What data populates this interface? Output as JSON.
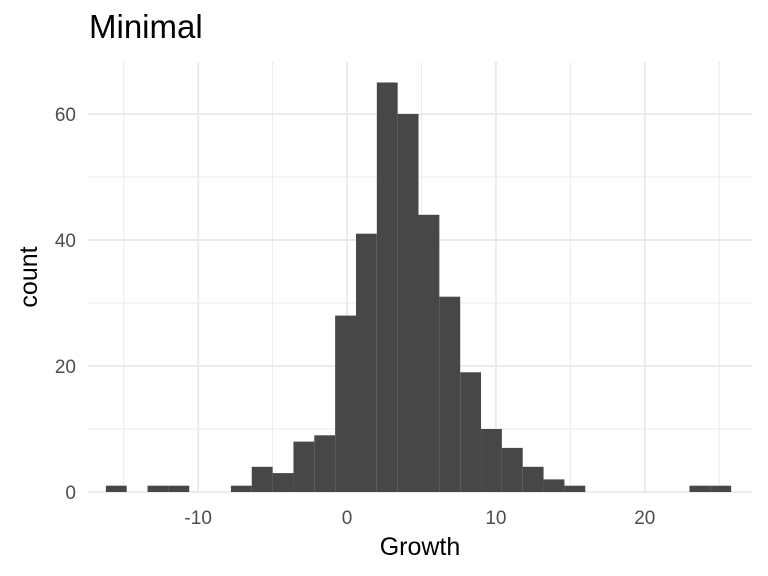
{
  "chart_data": {
    "type": "bar",
    "title": "Minimal",
    "xlabel": "Growth",
    "ylabel": "count",
    "xlim": [
      -17.4,
      27.2
    ],
    "ylim": [
      0,
      68.25
    ],
    "xticks": [
      -10,
      0,
      10,
      20
    ],
    "xtick_labels": [
      "-10",
      "0",
      "10",
      "20"
    ],
    "yticks": [
      0,
      20,
      40,
      60
    ],
    "ytick_labels": [
      "0",
      "20",
      "40",
      "60"
    ],
    "grid": true,
    "bar_color": "#474747",
    "bins": [
      {
        "x0": -16.2,
        "x1": -14.8,
        "count": 1
      },
      {
        "x0": -13.4,
        "x1": -12.0,
        "count": 1
      },
      {
        "x0": -12.0,
        "x1": -10.6,
        "count": 1
      },
      {
        "x0": -7.8,
        "x1": -6.4,
        "count": 1
      },
      {
        "x0": -6.4,
        "x1": -5.0,
        "count": 4
      },
      {
        "x0": -5.0,
        "x1": -3.6,
        "count": 3
      },
      {
        "x0": -3.6,
        "x1": -2.2,
        "count": 8
      },
      {
        "x0": -2.2,
        "x1": -0.8,
        "count": 9
      },
      {
        "x0": -0.8,
        "x1": 0.6,
        "count": 28
      },
      {
        "x0": 0.6,
        "x1": 2.0,
        "count": 41
      },
      {
        "x0": 2.0,
        "x1": 3.4,
        "count": 65
      },
      {
        "x0": 3.4,
        "x1": 4.8,
        "count": 60
      },
      {
        "x0": 4.8,
        "x1": 6.2,
        "count": 44
      },
      {
        "x0": 6.2,
        "x1": 7.6,
        "count": 31
      },
      {
        "x0": 7.6,
        "x1": 9.0,
        "count": 19
      },
      {
        "x0": 9.0,
        "x1": 10.4,
        "count": 10
      },
      {
        "x0": 10.4,
        "x1": 11.8,
        "count": 7
      },
      {
        "x0": 11.8,
        "x1": 13.2,
        "count": 4
      },
      {
        "x0": 13.2,
        "x1": 14.6,
        "count": 2
      },
      {
        "x0": 14.6,
        "x1": 16.0,
        "count": 1
      },
      {
        "x0": 23.0,
        "x1": 24.4,
        "count": 1
      },
      {
        "x0": 24.4,
        "x1": 25.8,
        "count": 1
      }
    ]
  }
}
